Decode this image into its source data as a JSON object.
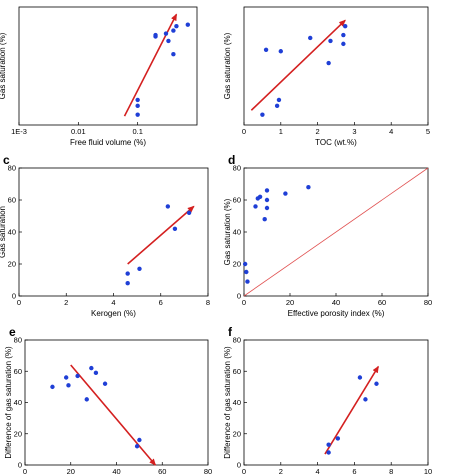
{
  "style": {
    "point_color": "#1f3fd6",
    "arrow_color": "#d42020",
    "line_color": "#e05050"
  },
  "chart_data": [
    {
      "panel": "",
      "type": "scatter",
      "xlabel": "Free fluid volume (%)",
      "ylabel": "Gas saturation (%)",
      "x_scale": "log",
      "xlim": [
        0.001,
        1
      ],
      "ylim": [
        0,
        80
      ],
      "x_ticks": [
        0.001,
        0.01,
        0.1
      ],
      "x_tick_labels": [
        "1E-3",
        "0.01",
        "0.1"
      ],
      "y_ticks": [],
      "y_tick_labels": [],
      "x": [
        0.1,
        0.1,
        0.1,
        0.2,
        0.2,
        0.3,
        0.33,
        0.4,
        0.4,
        0.45,
        0.7
      ],
      "y": [
        7,
        13,
        17,
        60,
        61,
        62,
        57,
        48,
        64,
        67,
        68
      ],
      "arrow": {
        "from": [
          0.06,
          6
        ],
        "to": [
          0.45,
          75
        ]
      }
    },
    {
      "panel": "",
      "type": "scatter",
      "xlabel": "TOC (wt.%)",
      "ylabel": "Gas saturation (%)",
      "xlim": [
        0,
        5
      ],
      "ylim": [
        0,
        80
      ],
      "x_ticks": [
        0,
        1,
        2,
        3,
        4,
        5
      ],
      "x_tick_labels": [
        "0",
        "1",
        "2",
        "3",
        "4",
        "5"
      ],
      "y_ticks": [],
      "y_tick_labels": [],
      "x": [
        0.5,
        0.6,
        0.9,
        0.95,
        1.0,
        1.8,
        2.3,
        2.35,
        2.7,
        2.7,
        2.75
      ],
      "y": [
        7,
        51,
        13,
        17,
        50,
        59,
        42,
        57,
        55,
        61,
        67
      ],
      "arrow": {
        "from": [
          0.2,
          10
        ],
        "to": [
          2.75,
          71
        ]
      }
    },
    {
      "panel": "c",
      "type": "scatter",
      "xlabel": "Kerogen (%)",
      "ylabel": "Gas saturation",
      "xlim": [
        0,
        8
      ],
      "ylim": [
        0,
        80
      ],
      "x_ticks": [
        0,
        2,
        4,
        6,
        8
      ],
      "x_tick_labels": [
        "0",
        "2",
        "4",
        "6",
        "8"
      ],
      "y_ticks": [
        0,
        20,
        40,
        60,
        80
      ],
      "y_tick_labels": [
        "0",
        "20",
        "40",
        "60",
        "80"
      ],
      "x": [
        4.6,
        4.6,
        5.1,
        6.3,
        6.6,
        7.2
      ],
      "y": [
        8,
        14,
        17,
        56,
        42,
        52
      ],
      "arrow": {
        "from": [
          4.6,
          20
        ],
        "to": [
          7.4,
          56
        ]
      }
    },
    {
      "panel": "d",
      "type": "scatter",
      "xlabel": "Effective porosity index (%)",
      "ylabel": "Gas saturation (%)",
      "xlim": [
        0,
        80
      ],
      "ylim": [
        0,
        80
      ],
      "x_ticks": [
        0,
        20,
        40,
        60,
        80
      ],
      "x_tick_labels": [
        "0",
        "20",
        "40",
        "60",
        "80"
      ],
      "y_ticks": [
        0,
        20,
        40,
        60,
        80
      ],
      "y_tick_labels": [
        "0",
        "20",
        "40",
        "60",
        "80"
      ],
      "x": [
        0.5,
        1,
        1.5,
        5,
        6,
        7,
        9,
        10,
        10,
        10,
        18,
        28
      ],
      "y": [
        20,
        15,
        9,
        56,
        61,
        62,
        48,
        55,
        60,
        66,
        64,
        68
      ],
      "reference_line": {
        "from": [
          0,
          0
        ],
        "to": [
          80,
          80
        ]
      }
    },
    {
      "panel": "e",
      "type": "scatter",
      "xlabel": "",
      "ylabel": "Difference of gas saturation (%)",
      "xlim": [
        0,
        80
      ],
      "ylim": [
        0,
        80
      ],
      "x_ticks": [
        0,
        20,
        40,
        60,
        80
      ],
      "x_tick_labels": [
        "0",
        "20",
        "40",
        "60",
        "80"
      ],
      "y_ticks": [
        0,
        20,
        40,
        60,
        80
      ],
      "y_tick_labels": [
        "0",
        "20",
        "40",
        "60",
        "80"
      ],
      "x": [
        12,
        18,
        19,
        23,
        27,
        29,
        31,
        35,
        49,
        50
      ],
      "y": [
        50,
        56,
        51,
        57,
        42,
        62,
        59,
        52,
        12,
        16
      ],
      "arrow": {
        "from": [
          20,
          64
        ],
        "to": [
          57,
          0
        ]
      }
    },
    {
      "panel": "f",
      "type": "scatter",
      "xlabel": "",
      "ylabel": "Difference of gas saturation (%)",
      "xlim": [
        0,
        10
      ],
      "ylim": [
        0,
        80
      ],
      "x_ticks": [
        0,
        2,
        4,
        6,
        8,
        10
      ],
      "x_tick_labels": [
        "0",
        "2",
        "4",
        "6",
        "8",
        "10"
      ],
      "y_ticks": [
        0,
        20,
        40,
        60,
        80
      ],
      "y_tick_labels": [
        "0",
        "20",
        "40",
        "60",
        "80"
      ],
      "x": [
        4.6,
        4.6,
        5.1,
        6.3,
        6.6,
        7.2
      ],
      "y": [
        8,
        13,
        17,
        56,
        42,
        52
      ],
      "arrow": {
        "from": [
          4.4,
          7
        ],
        "to": [
          7.3,
          63
        ]
      }
    }
  ]
}
